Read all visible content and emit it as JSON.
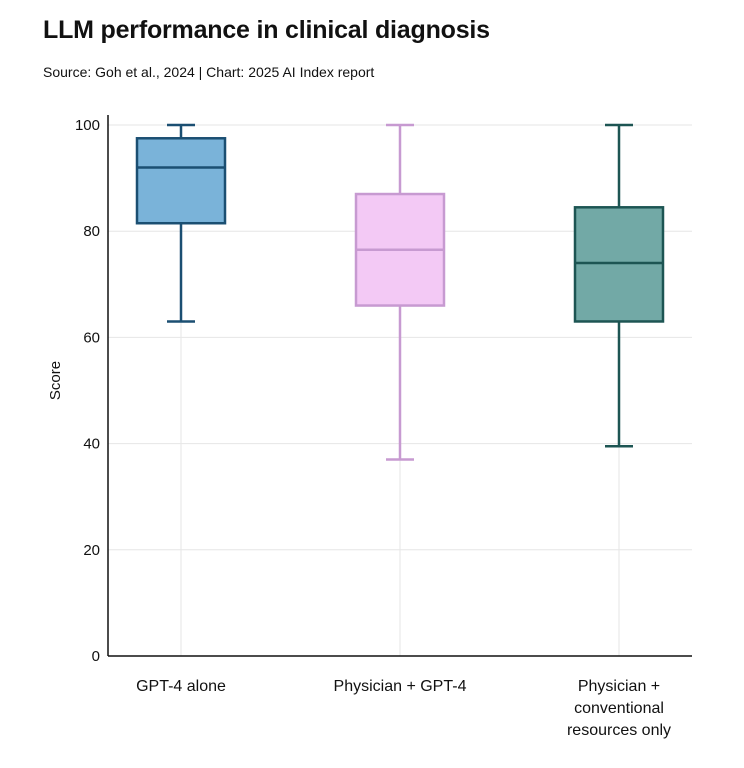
{
  "title": "LLM performance in clinical diagnosis",
  "subtitle": "Source: Goh et al., 2024 | Chart: 2025 AI Index report",
  "chart_data": {
    "type": "boxplot",
    "title": "LLM performance in clinical diagnosis",
    "xlabel": "",
    "ylabel": "Score",
    "ylim": [
      0,
      100
    ],
    "yticks": [
      0,
      20,
      40,
      60,
      80,
      100
    ],
    "grid": true,
    "categories": [
      [
        "GPT-4 alone"
      ],
      [
        "Physician + GPT-4"
      ],
      [
        "Physician +",
        "conventional",
        "resources only"
      ]
    ],
    "series": [
      {
        "name": "GPT-4 alone",
        "min": 63,
        "q1": 81.5,
        "median": 92,
        "q3": 97.5,
        "max": 100,
        "fill": "#7ab3d9",
        "stroke": "#1b4f72"
      },
      {
        "name": "Physician + GPT-4",
        "min": 37,
        "q1": 66,
        "median": 76.5,
        "q3": 87,
        "max": 100,
        "fill": "#f3c9f5",
        "stroke": "#c79ad1"
      },
      {
        "name": "Physician + conventional resources only",
        "min": 39.5,
        "q1": 63,
        "median": 74,
        "q3": 84.5,
        "max": 100,
        "fill": "#72a9a6",
        "stroke": "#1d5553"
      }
    ]
  }
}
